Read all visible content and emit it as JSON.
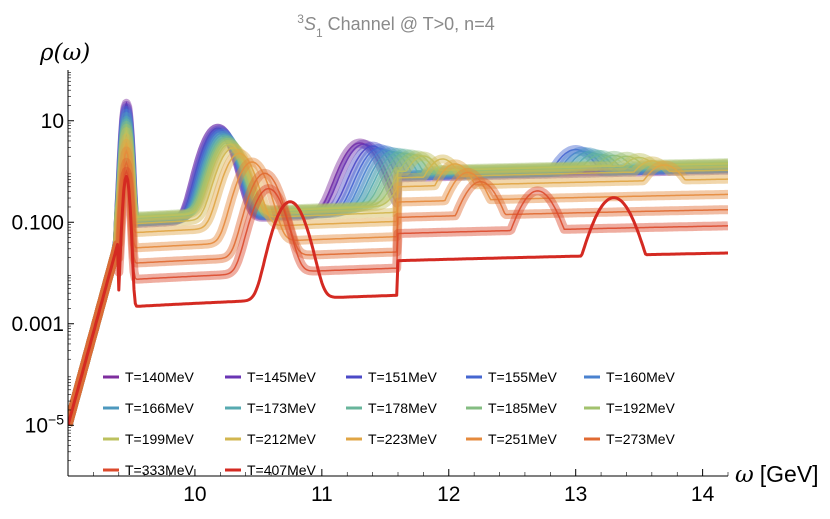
{
  "chart_data": {
    "type": "line",
    "title": "³S₁ Channel @ T>0, n=4",
    "title_parts": {
      "pre": "3",
      "main": "S",
      "sub": "1",
      "rest": " Channel @ T>0, n=4"
    },
    "ylabel": "ρ(ω)",
    "xlabel": "ω [GeV]",
    "xlabel_parts": {
      "symbol": "ω",
      "unit": "[GeV]"
    },
    "y_scale": "log",
    "xlim": [
      9.0,
      14.2
    ],
    "ylim": [
      1e-06,
      100
    ],
    "x_ticks": [
      10,
      11,
      12,
      13,
      14
    ],
    "x_tick_labels": [
      "10",
      "11",
      "12",
      "13",
      "14"
    ],
    "y_ticks": [
      10,
      0.1,
      0.001,
      1e-05
    ],
    "y_tick_labels": [
      "10",
      "0.100",
      "0.001",
      "10⁻⁵"
    ],
    "y_tick_label_parts": [
      {
        "base": "10",
        "exp": ""
      },
      {
        "base": "0.100",
        "exp": ""
      },
      {
        "base": "0.001",
        "exp": ""
      },
      {
        "base": "10",
        "exp": "−5"
      }
    ],
    "legend_position": "bottom",
    "series": [
      {
        "name": "T=140MeV",
        "color": "#7e2e9e",
        "peaks": [
          [
            9.46,
            22
          ],
          [
            10.18,
            7
          ],
          [
            11.3,
            3.5
          ]
        ],
        "tail": 1.5
      },
      {
        "name": "T=145MeV",
        "color": "#6a35b4",
        "peaks": [
          [
            9.46,
            20
          ],
          [
            10.18,
            7
          ],
          [
            11.33,
            3.3
          ]
        ],
        "tail": 1.6
      },
      {
        "name": "T=151MeV",
        "color": "#4b49c7",
        "peaks": [
          [
            9.46,
            18
          ],
          [
            10.19,
            6.5
          ],
          [
            11.4,
            3.0
          ]
        ],
        "tail": 1.7
      },
      {
        "name": "T=155MeV",
        "color": "#4566d0",
        "peaks": [
          [
            9.46,
            16
          ],
          [
            10.2,
            6
          ],
          [
            11.45,
            2.7
          ],
          [
            13.0,
            2.5
          ]
        ],
        "tail": 1.6
      },
      {
        "name": "T=160MeV",
        "color": "#4a82cf",
        "peaks": [
          [
            9.46,
            14
          ],
          [
            10.21,
            5.5
          ],
          [
            11.5,
            2.5
          ],
          [
            13.05,
            2.3
          ]
        ],
        "tail": 1.6
      },
      {
        "name": "T=166MeV",
        "color": "#4d98be",
        "peaks": [
          [
            9.46,
            12
          ],
          [
            10.22,
            5
          ],
          [
            11.55,
            2.3
          ],
          [
            13.1,
            2.2
          ]
        ],
        "tail": 1.7
      },
      {
        "name": "T=173MeV",
        "color": "#57aab0",
        "peaks": [
          [
            9.46,
            10
          ],
          [
            10.23,
            4.5
          ],
          [
            11.6,
            2.2
          ],
          [
            13.15,
            2.0
          ]
        ],
        "tail": 1.8
      },
      {
        "name": "T=178MeV",
        "color": "#68b59b",
        "peaks": [
          [
            9.46,
            9
          ],
          [
            10.24,
            4.2
          ],
          [
            11.65,
            2.1
          ],
          [
            13.2,
            1.9
          ]
        ],
        "tail": 1.9
      },
      {
        "name": "T=185MeV",
        "color": "#84bd82",
        "peaks": [
          [
            9.46,
            8
          ],
          [
            10.25,
            3.9
          ],
          [
            11.7,
            2.0
          ],
          [
            13.3,
            1.8
          ]
        ],
        "tail": 2.0
      },
      {
        "name": "T=192MeV",
        "color": "#a2c26d",
        "peaks": [
          [
            9.46,
            7
          ],
          [
            10.26,
            3.6
          ],
          [
            11.75,
            1.9
          ],
          [
            13.4,
            1.7
          ]
        ],
        "tail": 2.1
      },
      {
        "name": "T=199MeV",
        "color": "#bcc15e",
        "peaks": [
          [
            9.46,
            6
          ],
          [
            10.27,
            3.3
          ],
          [
            11.8,
            1.8
          ],
          [
            13.5,
            1.6
          ]
        ],
        "tail": 2.0
      },
      {
        "name": "T=212MeV",
        "color": "#d2b64f",
        "peaks": [
          [
            9.46,
            4.5
          ],
          [
            10.3,
            2.8
          ],
          [
            11.95,
            1.6
          ],
          [
            13.6,
            1.4
          ]
        ],
        "tail": 1.5
      },
      {
        "name": "T=223MeV",
        "color": "#e0a544",
        "peaks": [
          [
            9.46,
            3.5
          ],
          [
            10.35,
            2.2
          ],
          [
            12.05,
            1.3
          ],
          [
            13.7,
            1.2
          ]
        ],
        "tail": 1.0
      },
      {
        "name": "T=251MeV",
        "color": "#e58a3c",
        "peaks": [
          [
            9.46,
            2.5
          ],
          [
            10.45,
            1.5
          ],
          [
            12.15,
            0.9
          ]
        ],
        "tail": 0.5
      },
      {
        "name": "T=273MeV",
        "color": "#e06a32",
        "peaks": [
          [
            9.46,
            1.5
          ],
          [
            10.55,
            0.9
          ],
          [
            12.25,
            0.6
          ]
        ],
        "tail": 0.25
      },
      {
        "name": "T=333MeV",
        "color": "#dc4a2c",
        "peaks": [
          [
            9.46,
            1.0
          ],
          [
            10.58,
            0.45
          ],
          [
            12.7,
            0.4
          ]
        ],
        "tail": 0.12
      },
      {
        "name": "T=407MeV",
        "color": "#d42a22",
        "peaks": [
          [
            9.46,
            0.8
          ],
          [
            10.75,
            0.25
          ],
          [
            13.3,
            0.3
          ]
        ],
        "tail": 0.035
      }
    ]
  }
}
